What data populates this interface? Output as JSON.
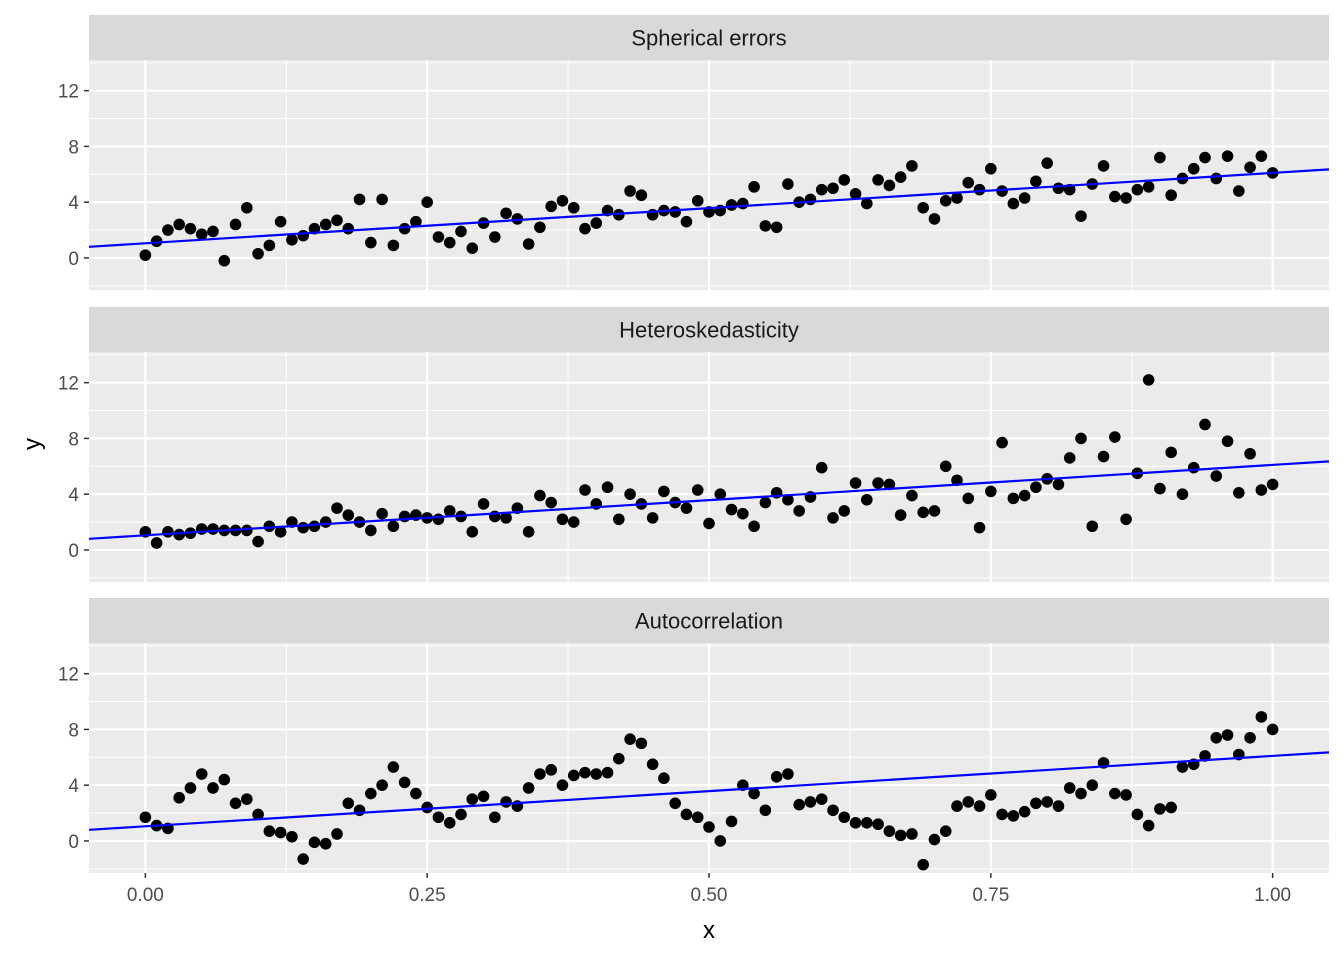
{
  "chart_data": {
    "type": "scatter",
    "xlabel": "x",
    "ylabel": "y",
    "xlim": [
      -0.05,
      1.05
    ],
    "ylim": [
      -2.3,
      14.2
    ],
    "x_ticks": [
      0,
      0.25,
      0.5,
      0.75,
      1
    ],
    "x_tick_labels": [
      "0.00",
      "0.25",
      "0.50",
      "0.75",
      "1.00"
    ],
    "y_ticks": [
      0,
      4,
      8,
      12
    ],
    "y_tick_labels": [
      "0",
      "4",
      "8",
      "12"
    ],
    "grid": true,
    "colors": {
      "points": "#000000",
      "fit_line": "#0000ff",
      "panel_bg": "#ebebeb",
      "strip_bg": "#d9d9d9",
      "grid": "#ffffff"
    },
    "x": [
      0.0,
      0.01,
      0.02,
      0.03,
      0.04,
      0.05,
      0.06,
      0.07,
      0.08,
      0.09,
      0.1,
      0.11,
      0.12,
      0.13,
      0.14,
      0.15,
      0.16,
      0.17,
      0.18,
      0.19,
      0.2,
      0.21,
      0.22,
      0.23,
      0.24,
      0.25,
      0.26,
      0.27,
      0.28,
      0.29,
      0.3,
      0.31,
      0.32,
      0.33,
      0.34,
      0.35,
      0.36,
      0.37,
      0.38,
      0.39,
      0.4,
      0.41,
      0.42,
      0.43,
      0.44,
      0.45,
      0.46,
      0.47,
      0.48,
      0.49,
      0.5,
      0.51,
      0.52,
      0.53,
      0.54,
      0.55,
      0.56,
      0.57,
      0.58,
      0.59,
      0.6,
      0.61,
      0.62,
      0.63,
      0.64,
      0.65,
      0.66,
      0.67,
      0.68,
      0.69,
      0.7,
      0.71,
      0.72,
      0.73,
      0.74,
      0.75,
      0.76,
      0.77,
      0.78,
      0.79,
      0.8,
      0.81,
      0.82,
      0.83,
      0.84,
      0.85,
      0.86,
      0.87,
      0.88,
      0.89,
      0.9,
      0.91,
      0.92,
      0.93,
      0.94,
      0.95,
      0.96,
      0.97,
      0.98,
      0.99,
      1.0
    ],
    "panels": [
      {
        "strip": "Spherical errors",
        "fit": {
          "intercept": 1.05,
          "slope": 5.05
        },
        "y": [
          0.2,
          1.2,
          2.0,
          2.4,
          2.1,
          1.7,
          1.9,
          -0.2,
          2.4,
          3.6,
          0.3,
          0.9,
          2.6,
          1.3,
          1.6,
          2.1,
          2.4,
          2.7,
          2.1,
          4.2,
          1.1,
          4.2,
          0.9,
          2.1,
          2.6,
          4.0,
          1.5,
          1.1,
          1.9,
          0.7,
          2.5,
          1.5,
          3.2,
          2.8,
          1.0,
          2.2,
          3.7,
          4.1,
          3.6,
          2.1,
          2.5,
          3.4,
          3.1,
          4.8,
          4.5,
          3.1,
          3.4,
          3.3,
          2.6,
          4.1,
          3.3,
          3.4,
          3.8,
          3.9,
          5.1,
          2.3,
          2.2,
          5.3,
          4.0,
          4.2,
          4.9,
          5.0,
          5.6,
          4.6,
          3.9,
          5.6,
          5.2,
          5.8,
          6.6,
          3.6,
          2.8,
          4.1,
          4.3,
          5.4,
          4.9,
          6.4,
          4.8,
          3.9,
          4.3,
          5.5,
          6.8,
          5.0,
          4.9,
          3.0,
          5.3,
          6.6,
          4.4,
          4.3,
          4.9,
          5.1,
          7.2,
          4.5,
          5.7,
          6.4,
          7.2,
          5.7,
          7.3,
          4.8,
          6.5,
          7.3,
          6.1
        ]
      },
      {
        "strip": "Heteroskedasticity",
        "fit": {
          "intercept": 1.05,
          "slope": 5.05
        },
        "y": [
          1.3,
          0.5,
          1.3,
          1.1,
          1.2,
          1.5,
          1.5,
          1.4,
          1.4,
          1.4,
          0.6,
          1.7,
          1.3,
          2.0,
          1.6,
          1.7,
          2.0,
          3.0,
          2.5,
          2.0,
          1.4,
          2.6,
          1.7,
          2.4,
          2.5,
          2.3,
          2.2,
          2.8,
          2.4,
          1.3,
          3.3,
          2.4,
          2.3,
          3.0,
          1.3,
          3.9,
          3.4,
          2.2,
          2.0,
          4.3,
          3.3,
          4.5,
          2.2,
          4.0,
          3.3,
          2.3,
          4.2,
          3.4,
          3.0,
          4.3,
          1.9,
          4.0,
          2.9,
          2.6,
          1.7,
          3.4,
          4.1,
          3.6,
          2.8,
          3.8,
          5.9,
          2.3,
          2.8,
          4.8,
          3.6,
          4.8,
          4.7,
          2.5,
          3.9,
          2.7,
          2.8,
          6.0,
          5.0,
          3.7,
          1.6,
          4.2,
          7.7,
          3.7,
          3.9,
          4.5,
          5.1,
          4.7,
          6.6,
          8.0,
          1.7,
          6.7,
          8.1,
          2.2,
          5.5,
          12.2,
          4.4,
          7.0,
          4.0,
          5.9,
          9.0,
          5.3,
          7.8,
          4.1,
          6.9,
          4.3,
          4.7
        ]
      },
      {
        "strip": "Autocorrelation",
        "fit": {
          "intercept": 1.05,
          "slope": 5.05
        },
        "y": [
          1.7,
          1.1,
          0.9,
          3.1,
          3.8,
          4.8,
          3.8,
          4.4,
          2.7,
          3.0,
          1.9,
          0.7,
          0.6,
          0.3,
          -1.3,
          -0.1,
          -0.2,
          0.5,
          2.7,
          2.2,
          3.4,
          4.0,
          5.3,
          4.2,
          3.4,
          2.4,
          1.7,
          1.3,
          1.9,
          3.0,
          3.2,
          1.7,
          2.8,
          2.5,
          3.8,
          4.8,
          5.1,
          4.0,
          4.7,
          4.9,
          4.8,
          4.9,
          5.9,
          7.3,
          7.0,
          5.5,
          4.5,
          2.7,
          1.9,
          1.7,
          1.0,
          0.0,
          1.4,
          4.0,
          3.4,
          2.2,
          4.6,
          4.8,
          2.6,
          2.8,
          3.0,
          2.2,
          1.7,
          1.3,
          1.3,
          1.2,
          0.7,
          0.4,
          0.5,
          -1.7,
          0.1,
          0.7,
          2.5,
          2.8,
          2.5,
          3.3,
          1.9,
          1.8,
          2.1,
          2.7,
          2.8,
          2.5,
          3.8,
          3.4,
          4.0,
          5.6,
          3.4,
          3.3,
          1.9,
          1.1,
          2.3,
          2.4,
          5.3,
          5.5,
          6.1,
          7.4,
          7.6,
          6.2,
          7.4,
          8.9,
          8.0
        ]
      }
    ]
  }
}
